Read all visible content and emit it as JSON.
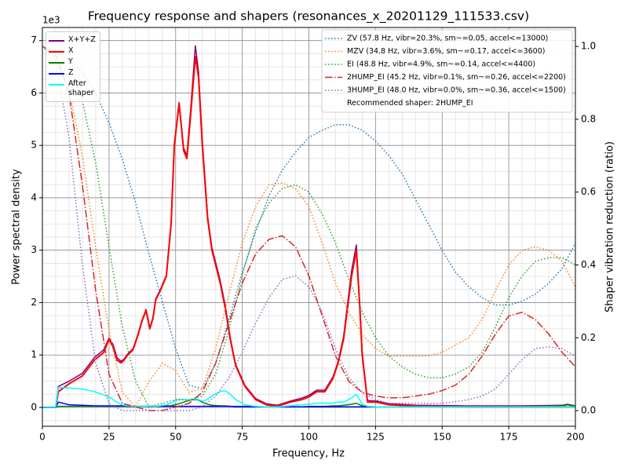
{
  "chart_data": {
    "type": "line",
    "title": "Frequency response and shapers (resonances_x_20201129_111533.csv)",
    "x_label": "Frequency, Hz",
    "y_label": "Power spectral density",
    "y2_label": "Shaper vibration reduction (ratio)",
    "y_offset_label": "1e3",
    "legend_note": "Recommended shaper: 2HUMP_EI",
    "grid": true,
    "legend": "upper left",
    "legend2": "upper right",
    "xlim": [
      0,
      200
    ],
    "xticks": [
      0,
      25,
      50,
      75,
      100,
      125,
      150,
      175,
      200
    ],
    "x_minor_ticks": [
      0,
      5,
      10,
      15,
      20,
      25,
      30,
      35,
      40,
      45,
      50,
      55,
      60,
      65,
      70,
      75,
      80,
      85,
      90,
      95,
      100,
      105,
      110,
      115,
      120,
      125,
      130,
      135,
      140,
      145,
      150,
      155,
      160,
      165,
      170,
      175,
      180,
      185,
      190,
      195,
      200
    ],
    "ylim": [
      -0.36,
      7.25
    ],
    "yticks": [
      0,
      1,
      2,
      3,
      4,
      5,
      6,
      7
    ],
    "y_minor_ticks": [
      -0.25,
      0,
      0.25,
      0.5,
      0.75,
      1,
      1.25,
      1.5,
      1.75,
      2,
      2.25,
      2.5,
      2.75,
      3,
      3.25,
      3.5,
      3.75,
      4,
      4.25,
      4.5,
      4.75,
      5,
      5.25,
      5.5,
      5.75,
      6,
      6.25,
      6.5,
      6.75,
      7,
      7.25
    ],
    "y2lim": [
      -0.043,
      1.052
    ],
    "y2ticks": [
      {
        "value": 0,
        "label": "0.0"
      },
      {
        "value": 0.2,
        "label": "0.2"
      },
      {
        "value": 0.4,
        "label": "0.4"
      },
      {
        "value": 0.6,
        "label": "0.6"
      },
      {
        "value": 0.8,
        "label": "0.8"
      },
      {
        "value": 1.0,
        "label": "1.0"
      }
    ],
    "x": [
      0,
      5,
      6,
      10,
      15,
      19.5,
      23,
      25,
      26.5,
      28,
      29.5,
      30.6,
      32,
      34,
      36,
      37.4,
      38.9,
      40.3,
      41.5,
      42.5,
      44,
      46.5,
      48.3,
      49.5,
      51.3,
      53,
      54.2,
      55.5,
      57.4,
      58.6,
      60,
      62,
      63.6,
      66.6,
      68.6,
      70.5,
      72.5,
      76,
      80,
      84,
      88,
      93,
      97.5,
      100,
      103,
      106,
      109,
      111,
      113,
      116,
      117.8,
      119,
      120,
      122,
      125.5,
      130,
      140,
      160,
      180,
      195,
      197,
      200
    ],
    "series": [
      {
        "name": "X+Y+Z",
        "color": "#800080",
        "dash": "solid",
        "width": 1.5,
        "values": [
          0,
          0,
          0.4,
          0.5,
          0.65,
          0.95,
          1.1,
          1.32,
          1.2,
          0.95,
          0.88,
          0.92,
          1.02,
          1.12,
          1.42,
          1.67,
          1.87,
          1.52,
          1.72,
          2.07,
          2.22,
          2.52,
          3.52,
          5.02,
          5.82,
          4.95,
          4.8,
          5.6,
          6.9,
          6.4,
          5.1,
          3.65,
          3.05,
          2.45,
          1.95,
          1.33,
          0.82,
          0.42,
          0.17,
          0.07,
          0.04,
          0.12,
          0.18,
          0.23,
          0.33,
          0.33,
          0.58,
          0.88,
          1.35,
          2.6,
          3.1,
          2.05,
          1.05,
          0.13,
          0.12,
          0.07,
          0.04,
          0.03,
          0.03,
          0.04,
          0.06,
          0.03
        ]
      },
      {
        "name": "X",
        "color": "#ff0000",
        "dash": "solid",
        "width": 2,
        "values": [
          0,
          0,
          0.3,
          0.45,
          0.6,
          0.9,
          1.05,
          1.3,
          1.15,
          0.9,
          0.85,
          0.9,
          1.0,
          1.1,
          1.4,
          1.65,
          1.85,
          1.5,
          1.7,
          2.05,
          2.2,
          2.5,
          3.5,
          5.0,
          5.8,
          4.9,
          4.75,
          5.5,
          6.7,
          6.3,
          5.0,
          3.6,
          3.0,
          2.4,
          1.9,
          1.3,
          0.8,
          0.4,
          0.15,
          0.05,
          0.02,
          0.1,
          0.15,
          0.2,
          0.3,
          0.3,
          0.55,
          0.85,
          1.3,
          2.5,
          3.0,
          2.0,
          1.0,
          0.1,
          0.1,
          0.05,
          0.02,
          0.01,
          0.01,
          0.01,
          0.01,
          0.01
        ]
      },
      {
        "name": "Y",
        "color": "#008000",
        "dash": "solid",
        "width": 1.5,
        "values": [
          0,
          0,
          0.02,
          0.02,
          0.02,
          0.02,
          0.02,
          0.02,
          0.02,
          0.02,
          0.02,
          0.02,
          0.02,
          0.02,
          0.02,
          0.02,
          0.02,
          0.02,
          0.02,
          0.02,
          0.02,
          0.03,
          0.03,
          0.05,
          0.07,
          0.1,
          0.12,
          0.14,
          0.15,
          0.14,
          0.1,
          0.06,
          0.04,
          0.03,
          0.03,
          0.02,
          0.02,
          0.02,
          0.01,
          0.01,
          0.01,
          0.01,
          0.01,
          0.02,
          0.02,
          0.02,
          0.03,
          0.03,
          0.04,
          0.06,
          0.08,
          0.05,
          0.03,
          0.01,
          0.01,
          0.01,
          0.01,
          0.01,
          0.01,
          0.03,
          0.05,
          0.02
        ]
      },
      {
        "name": "Z",
        "color": "#0000ff",
        "dash": "solid",
        "width": 1.5,
        "values": [
          0,
          0,
          0.1,
          0.05,
          0.04,
          0.03,
          0.03,
          0.03,
          0.03,
          0.03,
          0.03,
          0.03,
          0.02,
          0.02,
          0.02,
          0.02,
          0.02,
          0.02,
          0.02,
          0.02,
          0.02,
          0.02,
          0.02,
          0.02,
          0.02,
          0.02,
          0.02,
          0.02,
          0.02,
          0.02,
          0.02,
          0.02,
          0.02,
          0.02,
          0.02,
          0.02,
          0.01,
          0.01,
          0.01,
          0.01,
          0.01,
          0.01,
          0.01,
          0.01,
          0.01,
          0.01,
          0.01,
          0.01,
          0.01,
          0.01,
          0.01,
          0.01,
          0.01,
          0.01,
          0.01,
          0.01,
          0.01,
          0.01,
          0.01,
          0.01,
          0.01,
          0.01
        ]
      },
      {
        "name": "After shaper",
        "color": "#00ffff",
        "dash": "solid",
        "width": 1.5,
        "values": [
          0,
          0,
          0.38,
          0.37,
          0.35,
          0.3,
          0.24,
          0.2,
          0.15,
          0.1,
          0.06,
          0.04,
          0.03,
          0.02,
          0.02,
          0.02,
          0.02,
          0.02,
          0.02,
          0.02,
          0.03,
          0.05,
          0.08,
          0.12,
          0.15,
          0.15,
          0.14,
          0.15,
          0.16,
          0.15,
          0.12,
          0.15,
          0.22,
          0.3,
          0.32,
          0.25,
          0.15,
          0.05,
          0.02,
          0.01,
          0.01,
          0.03,
          0.05,
          0.06,
          0.08,
          0.08,
          0.08,
          0.1,
          0.1,
          0.18,
          0.25,
          0.15,
          0.06,
          0.02,
          0.01,
          0.01,
          0.01,
          0.01,
          0.01,
          0.01,
          0.01,
          0.01
        ]
      },
      {
        "name": "ZV (57.8 Hz, vibr=20.3%, sm~=0.05, accel<=13000)",
        "color": "#1f77b4",
        "dash": "dotted",
        "width": 1.5,
        "axis": "y2",
        "x": [
          0,
          5,
          10,
          15,
          20,
          25,
          30,
          35,
          40,
          45,
          50,
          55,
          60,
          65,
          70,
          75,
          80,
          85,
          90,
          95,
          100,
          105,
          110,
          115,
          120,
          125,
          130,
          135,
          140,
          145,
          150,
          155,
          160,
          165,
          170,
          175,
          180,
          185,
          190,
          195,
          200
        ],
        "values": [
          1.0,
          0.99,
          0.96,
          0.93,
          0.87,
          0.79,
          0.69,
          0.57,
          0.43,
          0.3,
          0.17,
          0.07,
          0.06,
          0.13,
          0.25,
          0.38,
          0.49,
          0.59,
          0.66,
          0.71,
          0.75,
          0.77,
          0.785,
          0.785,
          0.77,
          0.74,
          0.7,
          0.65,
          0.58,
          0.51,
          0.44,
          0.38,
          0.34,
          0.31,
          0.29,
          0.29,
          0.3,
          0.32,
          0.35,
          0.39,
          0.46
        ]
      },
      {
        "name": "MZV (34.8 Hz, vibr=3.6%, sm~=0.17, accel<=3600)",
        "color": "#ff7f0e",
        "dash": "dotted",
        "width": 1.5,
        "axis": "y2",
        "x": [
          0,
          5,
          10,
          15,
          20,
          25,
          30,
          35,
          40,
          45,
          50,
          55,
          60,
          65,
          70,
          75,
          80,
          85,
          90,
          95,
          100,
          105,
          110,
          115,
          120,
          125,
          130,
          135,
          140,
          145,
          150,
          155,
          160,
          165,
          170,
          175,
          180,
          185,
          190,
          195,
          200
        ],
        "values": [
          1.0,
          0.97,
          0.88,
          0.7,
          0.45,
          0.22,
          0.05,
          0.01,
          0.08,
          0.13,
          0.11,
          0.05,
          0.06,
          0.17,
          0.32,
          0.46,
          0.56,
          0.62,
          0.625,
          0.61,
          0.56,
          0.46,
          0.35,
          0.27,
          0.21,
          0.17,
          0.15,
          0.15,
          0.15,
          0.15,
          0.16,
          0.18,
          0.2,
          0.25,
          0.33,
          0.4,
          0.44,
          0.45,
          0.44,
          0.41,
          0.34
        ]
      },
      {
        "name": "EI (48.8 Hz, vibr=4.9%, sm~=0.14, accel<=4400)",
        "color": "#2ca02c",
        "dash": "dotted",
        "width": 1.5,
        "axis": "y2",
        "x": [
          0,
          5,
          10,
          15,
          20,
          25,
          30,
          35,
          40,
          45,
          50,
          55,
          60,
          65,
          70,
          75,
          80,
          85,
          90,
          95,
          100,
          105,
          110,
          115,
          120,
          125,
          130,
          135,
          140,
          145,
          150,
          155,
          160,
          165,
          170,
          175,
          180,
          185,
          190,
          195,
          200
        ],
        "values": [
          1.0,
          0.99,
          0.95,
          0.85,
          0.68,
          0.45,
          0.23,
          0.08,
          0.01,
          0.02,
          0.03,
          0.03,
          0.04,
          0.1,
          0.22,
          0.37,
          0.5,
          0.57,
          0.61,
          0.62,
          0.6,
          0.54,
          0.46,
          0.36,
          0.27,
          0.2,
          0.15,
          0.12,
          0.1,
          0.09,
          0.09,
          0.1,
          0.12,
          0.16,
          0.23,
          0.31,
          0.37,
          0.41,
          0.42,
          0.42,
          0.4
        ]
      },
      {
        "name": "2HUMP_EI (45.2 Hz, vibr=0.1%, sm~=0.26, accel<=2200)",
        "color": "#d62728",
        "dash": "dashdot",
        "width": 1.5,
        "axis": "y2",
        "x": [
          0,
          5,
          10,
          15,
          20,
          25,
          30,
          35,
          40,
          45,
          50,
          55,
          60,
          65,
          70,
          75,
          80,
          85,
          90,
          95,
          100,
          105,
          110,
          115,
          120,
          125,
          130,
          135,
          140,
          145,
          150,
          155,
          160,
          165,
          170,
          175,
          180,
          185,
          190,
          195,
          200
        ],
        "values": [
          1.0,
          0.98,
          0.87,
          0.62,
          0.33,
          0.1,
          0.02,
          0.01,
          0.0,
          0.0,
          0.01,
          0.02,
          0.05,
          0.13,
          0.24,
          0.35,
          0.43,
          0.47,
          0.48,
          0.45,
          0.37,
          0.26,
          0.15,
          0.08,
          0.05,
          0.04,
          0.035,
          0.035,
          0.04,
          0.045,
          0.055,
          0.07,
          0.1,
          0.15,
          0.21,
          0.26,
          0.27,
          0.25,
          0.21,
          0.16,
          0.12
        ]
      },
      {
        "name": "3HUMP_EI (48.0 Hz, vibr=0.0%, sm~=0.36, accel<=1500)",
        "color": "#9467bd",
        "dash": "dotted",
        "width": 1.5,
        "axis": "y2",
        "x": [
          0,
          5,
          10,
          15,
          20,
          25,
          30,
          35,
          40,
          45,
          50,
          55,
          60,
          65,
          70,
          75,
          80,
          85,
          90,
          95,
          100,
          105,
          110,
          115,
          120,
          125,
          130,
          135,
          140,
          145,
          150,
          155,
          160,
          165,
          170,
          175,
          180,
          185,
          190,
          195,
          200
        ],
        "values": [
          1.0,
          0.96,
          0.75,
          0.4,
          0.13,
          0.02,
          0.0,
          0.0,
          0.0,
          0.0,
          0.0,
          0.0,
          0.01,
          0.04,
          0.09,
          0.16,
          0.24,
          0.31,
          0.36,
          0.37,
          0.34,
          0.27,
          0.17,
          0.09,
          0.05,
          0.03,
          0.02,
          0.02,
          0.02,
          0.02,
          0.02,
          0.025,
          0.03,
          0.04,
          0.06,
          0.1,
          0.14,
          0.17,
          0.175,
          0.17,
          0.15
        ]
      }
    ]
  }
}
